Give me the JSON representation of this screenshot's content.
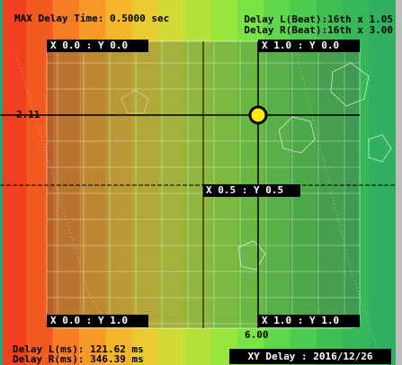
{
  "header": {
    "max_delay": "MAX Delay Time: 0.5000 sec",
    "delay_l_beat": "Delay L(Beat):16th x 1.05",
    "delay_r_beat": "Delay R(Beat):16th x 3.00"
  },
  "pad": {
    "corners": [
      "X 0.0 : Y 0.0",
      "X 1.0 : Y 0.0",
      "X 0.0 : Y 1.0",
      "X 1.0 : Y 1.0"
    ],
    "center": "X 0.5 : Y 0.5",
    "y_readout": "2.11",
    "x_readout": "6.00"
  },
  "readouts": {
    "delay_l_ms": "Delay L(ms): 121.62 ms",
    "delay_r_ms": "Delay R(ms): 346.39 ms"
  },
  "footer": "XY Delay : 2016/12/26"
}
